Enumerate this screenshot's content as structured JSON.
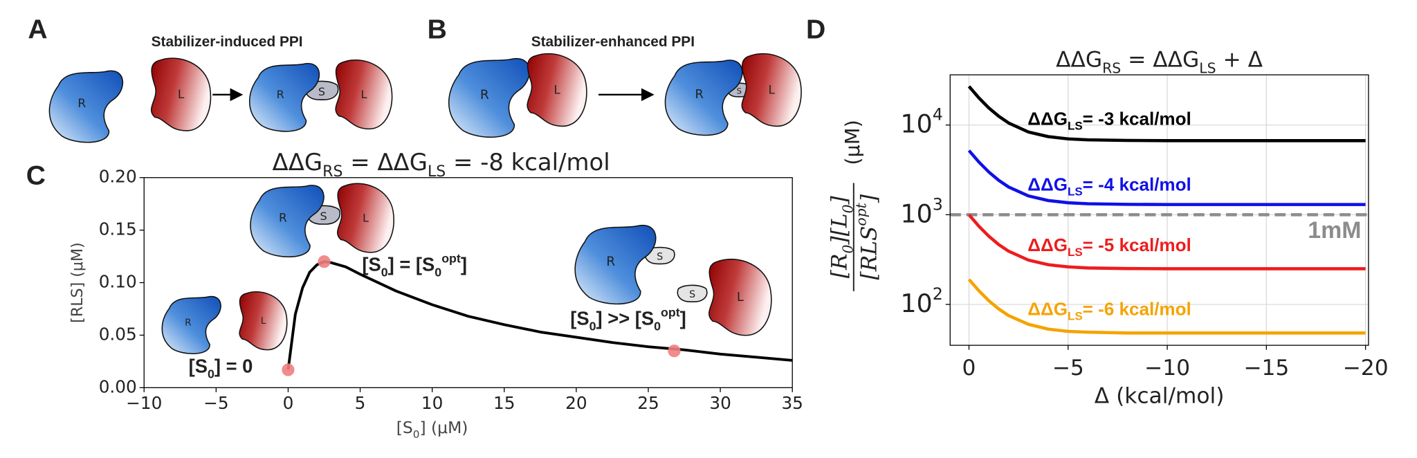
{
  "diagrams": [
    {
      "label": "A",
      "title": "Stabilizer-induced PPI",
      "before": [
        "R",
        "L"
      ],
      "after": [
        "R",
        "S",
        "L"
      ]
    },
    {
      "label": "B",
      "title": "Stabilizer-enhanced PPI",
      "before": [
        "R",
        "L"
      ],
      "after": [
        "R",
        "S",
        "L"
      ]
    }
  ],
  "chart_data": [
    {
      "type": "line",
      "panel_label": "C",
      "title": "ΔΔG_{RS} = ΔΔG_{LS} = -8 kcal/mol",
      "xlabel": "[S_{0}] (μM)",
      "ylabel": "[RLS] (μM)",
      "x": [
        0,
        0.5,
        1,
        1.5,
        2,
        2.5,
        3,
        4,
        5,
        7.5,
        10,
        12.5,
        15,
        17.5,
        20,
        22.5,
        25,
        27.5,
        30,
        32.5,
        35
      ],
      "series": [
        {
          "color": "#000000",
          "values": [
            0.017,
            0.07,
            0.095,
            0.11,
            0.117,
            0.12,
            0.119,
            0.115,
            0.108,
            0.092,
            0.079,
            0.068,
            0.06,
            0.053,
            0.048,
            0.043,
            0.039,
            0.036,
            0.032,
            0.029,
            0.026
          ]
        }
      ],
      "markers": {
        "type": "scatter",
        "color": "#f08080",
        "x": [
          0,
          2.5,
          26.8
        ],
        "values": [
          0.017,
          0.12,
          0.035
        ]
      },
      "xlim": [
        -10,
        35
      ],
      "ylim": [
        0,
        0.2
      ],
      "xticks": [
        {
          "value": -10,
          "label": "−10"
        },
        {
          "value": -5,
          "label": "−5"
        },
        0,
        5,
        10,
        15,
        20,
        25,
        30,
        35
      ],
      "yticks": [
        {
          "value": 0,
          "label": "0.00"
        },
        {
          "value": 0.05,
          "label": "0.05"
        },
        {
          "value": 0.1,
          "label": "0.10"
        },
        {
          "value": 0.15,
          "label": "0.15"
        },
        {
          "value": 0.2,
          "label": "0.20"
        }
      ],
      "annotations": [
        "[S_{0}] = 0",
        "[S_{0}] = [S_{0}^{opt}]",
        "[S_{0}] >> [S_{0}^{opt}]"
      ],
      "inset_labels": [
        [
          "R",
          "S",
          "L"
        ],
        [
          "R",
          "L"
        ],
        [
          "R",
          "S",
          "S",
          "L"
        ]
      ]
    },
    {
      "type": "line",
      "panel_label": "D",
      "log_y": true,
      "grid": true,
      "title": "ΔΔG_{RS} = ΔΔG_{LS} + Δ",
      "xlabel": "Δ (kcal/mol)",
      "ylabel": {
        "numerator": "[R_{0}][L_{0}]",
        "denominator": "[RLS^{opt}]",
        "unit": "(μM)"
      },
      "x": [
        0,
        -0.5,
        -1,
        -1.5,
        -2,
        -3,
        -4,
        -5,
        -6,
        -8,
        -10,
        -15,
        -20
      ],
      "series": [
        {
          "name": "ΔΔG_{LS}= -3 kcal/mol",
          "color": "#000000",
          "values": [
            27000,
            20080,
            15530,
            12530,
            10540,
            8360,
            7430,
            7010,
            6840,
            6730,
            6700,
            6700,
            6700
          ]
        },
        {
          "name": "ΔΔG_{LS}= -4 kcal/mol",
          "color": "#1010e8",
          "values": [
            5200,
            3870,
            2997,
            2419,
            2037,
            1620,
            1440,
            1360,
            1326,
            1305,
            1300,
            1300,
            1300
          ]
        },
        {
          "name": "ΔΔG_{LS}= -5 kcal/mol",
          "color": "#ee1c1c",
          "values": [
            1000,
            744,
            576,
            465,
            392,
            312,
            277,
            262,
            255,
            251,
            250,
            250,
            250
          ]
        },
        {
          "name": "ΔΔG_{LS}= -6 kcal/mol",
          "color": "#f5a300",
          "values": [
            190,
            142,
            110,
            89,
            75,
            60,
            53,
            50,
            49,
            48,
            48,
            48,
            48
          ]
        }
      ],
      "reference_line": {
        "value": 1000,
        "label": "1mM",
        "color": "#8c8c8c"
      },
      "xlim": [
        0.95,
        -20.15
      ],
      "ylim": [
        35,
        36300
      ],
      "xticks": [
        0,
        {
          "value": -5,
          "label": "−5"
        },
        {
          "value": -10,
          "label": "−10"
        },
        {
          "value": -15,
          "label": "−15"
        },
        {
          "value": -20,
          "label": "−20"
        }
      ],
      "yticks": [
        {
          "value": 100,
          "label": "10^{2}"
        },
        {
          "value": 1000,
          "label": "10^{3}"
        },
        {
          "value": 10000,
          "label": "10^{4}"
        }
      ]
    }
  ]
}
